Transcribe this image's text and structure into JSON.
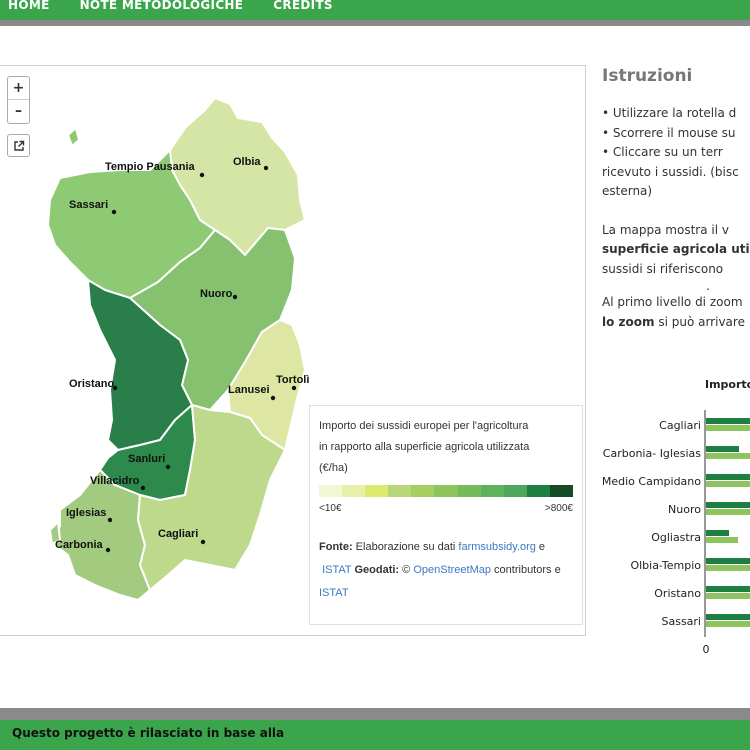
{
  "nav": {
    "items": [
      "HOME",
      "NOTE METODOLOGICHE",
      "CREDITS"
    ]
  },
  "map": {
    "zoom_in": "+",
    "zoom_out": "–",
    "external_icon": "external-link-icon",
    "cities": [
      "Tempio Pausania",
      "Olbia",
      "Sassari",
      "Nuoro",
      "Oristano",
      "Lanusei",
      "Tortolì",
      "Sanluri",
      "Villacidro",
      "Iglesias",
      "Carbonia",
      "Cagliari"
    ]
  },
  "legend": {
    "title_line1": "Importo dei sussidi europei per l'agricoltura",
    "title_line2": "in rapporto alla superficie agricola utilizzata",
    "title_line3": "(€/ha)",
    "colors": [
      "#f4f7d4",
      "#e6efac",
      "#dde96f",
      "#b9d77a",
      "#a6cf61",
      "#8ec45d",
      "#75bb5c",
      "#5fb25c",
      "#51a65f",
      "#1e7f43",
      "#144a26"
    ],
    "min_label": "<10€",
    "max_label": ">800€",
    "fonte_label": "Fonte:",
    "fonte_text": "Elaborazione su dati",
    "link_farmsubsidy": "farmsubsidy.org",
    "e1": "e",
    "link_istat1": "ISTAT",
    "geodati_label": "Geodati:",
    "copyright": "©",
    "link_osm": "OpenStreetMap",
    "contributors": "contributors e",
    "link_istat2": "ISTAT"
  },
  "instructions": {
    "title": "Istruzioni",
    "bullet1": "•  Utilizzare la rotella d",
    "bullet2": "•  Scorrere il mouse su",
    "bullet3a": "•  Cliccare  su  un  terr",
    "bullet3b": "ricevuto  i  sussidi.  (bisc",
    "bullet3c": "esterna)",
    "p1a": "La  mappa  mostra  il  v",
    "p1b": "superficie agricola uti",
    "p1c": "sussidi   si   riferiscono",
    "p1d": ".",
    "p2a": "Al primo livello di zoom",
    "p2b_bold": "lo zoom",
    "p2b_rest": " si può arrivare"
  },
  "chart_data": {
    "type": "bar",
    "title": "Importo",
    "categories": [
      "Cagliari",
      "Carbonia- Iglesias",
      "Medio Campidano",
      "Nuoro",
      "Ogliastra",
      "Olbia-Tempio",
      "Oristano",
      "Sassari"
    ],
    "series_colors": [
      "#1e7f43",
      "#8ec45d"
    ],
    "x_tick": "0"
  },
  "footer": {
    "text": "Questo progetto è rilasciato in base alla"
  }
}
